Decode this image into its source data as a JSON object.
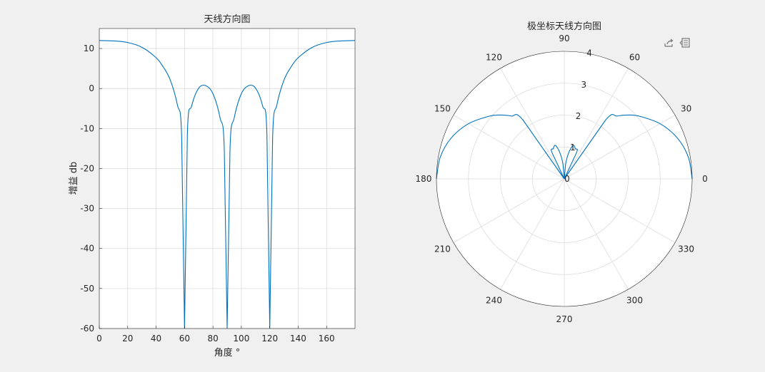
{
  "colors": {
    "line": "#0072BD",
    "grid": "#dcdcdc",
    "axis": "#262626",
    "background": "#f0f0f0",
    "axes_bg": "#ffffff"
  },
  "toolbar": {
    "icons": [
      "export-icon",
      "data-tips-icon"
    ]
  },
  "chart_data": [
    {
      "type": "line",
      "title": "天线方向图",
      "xlabel": "角度 °",
      "ylabel": "增益 db",
      "xlim": [
        0,
        180
      ],
      "ylim": [
        -60,
        15
      ],
      "xticks": [
        "0",
        "20",
        "40",
        "60",
        "80",
        "100",
        "120",
        "140",
        "160"
      ],
      "yticks": [
        "10",
        "0",
        "-10",
        "-20",
        "-30",
        "-40",
        "-50",
        "-60"
      ],
      "grid": true,
      "series": [
        {
          "x": [
            0,
            10,
            20,
            30,
            40,
            45,
            50,
            55,
            58,
            60,
            62,
            65,
            70,
            75,
            80,
            85,
            88,
            90,
            92,
            95,
            100,
            105,
            110,
            115,
            118,
            120,
            122,
            125,
            130,
            135,
            140,
            150,
            160,
            170,
            180
          ],
          "y": [
            12.0,
            11.9,
            11.5,
            10.3,
            7.7,
            5.4,
            2.1,
            -4.1,
            -12.3,
            -60,
            -11.5,
            -4.4,
            0.1,
            0.7,
            -1.3,
            -7.3,
            -15.3,
            -60,
            -15.3,
            -7.3,
            -1.3,
            0.7,
            0.1,
            -4.4,
            -11.5,
            -60,
            -12.3,
            -4.1,
            2.1,
            5.4,
            7.7,
            10.3,
            11.5,
            11.9,
            12.0
          ]
        }
      ]
    },
    {
      "type": "polar",
      "title": "极坐标天线方向图",
      "rlim": [
        0,
        4
      ],
      "rticks": [
        "0",
        "1",
        "2",
        "3",
        "4"
      ],
      "angle_ticks": [
        "0",
        "30",
        "60",
        "90",
        "120",
        "150",
        "180",
        "210",
        "240",
        "270",
        "300",
        "330"
      ],
      "grid": true,
      "series": [
        {
          "theta": [
            0,
            10,
            20,
            30,
            40,
            45,
            50,
            55,
            60,
            65,
            70,
            75,
            80,
            85,
            90,
            95,
            100,
            105,
            110,
            115,
            120,
            125,
            130,
            135,
            140,
            150,
            160,
            170,
            180
          ],
          "r": [
            4.0,
            3.94,
            3.76,
            3.46,
            3.06,
            2.83,
            2.57,
            2.25,
            0.0,
            0.92,
            1.01,
            1.09,
            0.86,
            0.46,
            0.0,
            0.46,
            0.86,
            1.09,
            1.01,
            0.92,
            0.0,
            2.25,
            2.57,
            2.83,
            3.06,
            3.46,
            3.76,
            3.94,
            4.0
          ]
        }
      ]
    }
  ]
}
